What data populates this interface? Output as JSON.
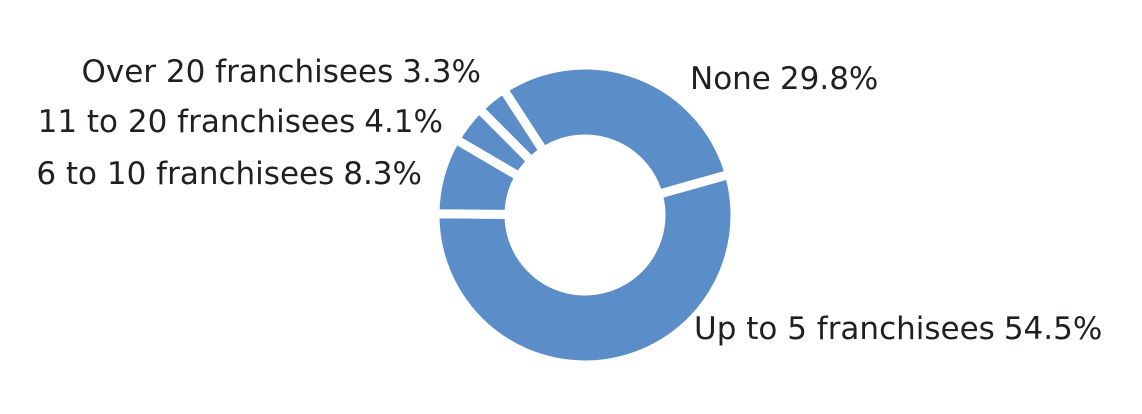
{
  "chart_data": {
    "type": "donut",
    "categories": [
      "None",
      "Up to 5 franchisees",
      "6 to 10 franchisees",
      "11 to 20 franchisees",
      "Over 20 franchisees"
    ],
    "values": [
      29.8,
      54.5,
      8.3,
      4.1,
      3.3
    ],
    "value_labels": [
      "29.8%",
      "54.5%",
      "8.3%",
      "4.1%",
      "3.3%"
    ],
    "color": "#5b8dc9"
  }
}
